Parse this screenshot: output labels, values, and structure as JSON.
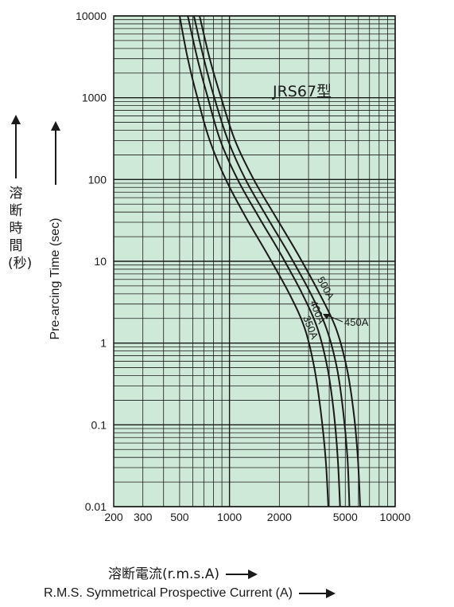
{
  "chart_data": {
    "type": "line",
    "title": "JRS67型",
    "x_scale": "log",
    "y_scale": "log",
    "xlim": [
      200,
      10000
    ],
    "ylim": [
      0.01,
      10000
    ],
    "x_ticks": [
      "200",
      "300",
      "500",
      "1000",
      "2000",
      "5000",
      "10000"
    ],
    "y_ticks": [
      "10000",
      "1000",
      "100",
      "10",
      "1",
      "0.1",
      "0.01"
    ],
    "xlabel": "溶断電流(r.m.s.A)",
    "xlabel_en": "R.M.S. Symmetrical Prospective Current (A)",
    "ylabel": "溶断時間(秒)",
    "ylabel_en": "Pre-arcing Time (sec)",
    "grid": true,
    "background_color": "#cfe9d8",
    "line_color": "#1a1a1a",
    "series": [
      {
        "name": "350A",
        "points": [
          [
            500,
            10000
          ],
          [
            560,
            3000
          ],
          [
            640,
            1000
          ],
          [
            760,
            300
          ],
          [
            950,
            100
          ],
          [
            1250,
            35
          ],
          [
            1700,
            12
          ],
          [
            2300,
            4
          ],
          [
            2850,
            1.5
          ],
          [
            3250,
            0.5
          ],
          [
            3550,
            0.15
          ],
          [
            3800,
            0.04
          ],
          [
            3950,
            0.01
          ]
        ]
      },
      {
        "name": "400A",
        "points": [
          [
            560,
            10000
          ],
          [
            640,
            3000
          ],
          [
            740,
            1000
          ],
          [
            880,
            300
          ],
          [
            1120,
            100
          ],
          [
            1500,
            35
          ],
          [
            2050,
            12
          ],
          [
            2750,
            4
          ],
          [
            3400,
            1.5
          ],
          [
            3900,
            0.5
          ],
          [
            4250,
            0.15
          ],
          [
            4500,
            0.04
          ],
          [
            4650,
            0.01
          ]
        ]
      },
      {
        "name": "450A",
        "points": [
          [
            610,
            10000
          ],
          [
            700,
            3000
          ],
          [
            810,
            1000
          ],
          [
            980,
            300
          ],
          [
            1250,
            100
          ],
          [
            1680,
            35
          ],
          [
            2300,
            12
          ],
          [
            3100,
            4
          ],
          [
            3850,
            1.5
          ],
          [
            4450,
            0.5
          ],
          [
            4850,
            0.15
          ],
          [
            5150,
            0.04
          ],
          [
            5300,
            0.01
          ]
        ]
      },
      {
        "name": "500A",
        "points": [
          [
            660,
            10000
          ],
          [
            760,
            3000
          ],
          [
            890,
            1000
          ],
          [
            1080,
            300
          ],
          [
            1400,
            100
          ],
          [
            1900,
            35
          ],
          [
            2600,
            12
          ],
          [
            3500,
            4
          ],
          [
            4400,
            1.5
          ],
          [
            5100,
            0.5
          ],
          [
            5600,
            0.15
          ],
          [
            5950,
            0.04
          ],
          [
            6150,
            0.01
          ]
        ]
      }
    ],
    "annotations": [
      "500A",
      "400A",
      "350A",
      "450A"
    ]
  }
}
